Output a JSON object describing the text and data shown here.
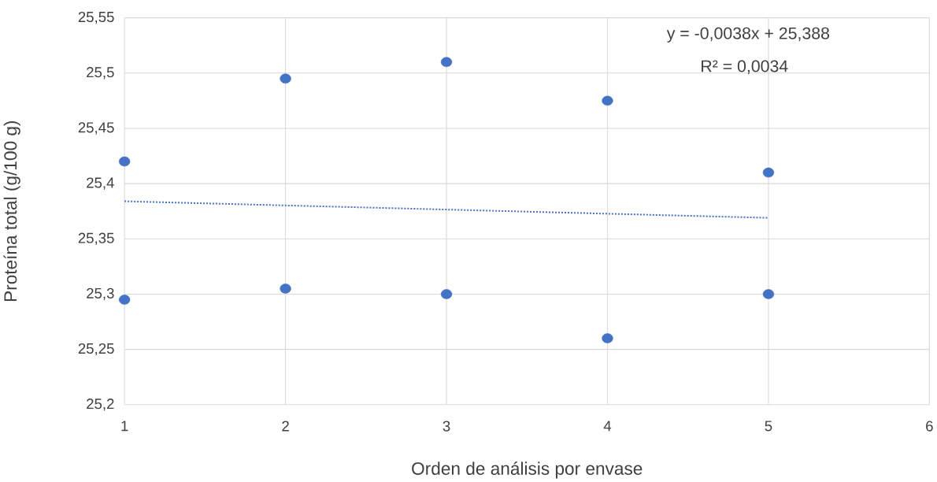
{
  "chart_data": {
    "type": "scatter",
    "xlabel": "Orden de análisis por envase",
    "ylabel": "Proteína total (g/100 g)",
    "series": [
      {
        "type": "scatter",
        "color": "#4472c4",
        "marker": "circle",
        "x": [
          1,
          1,
          2,
          2,
          3,
          3,
          4,
          4,
          5,
          5
        ],
        "values": [
          25.42,
          25.295,
          25.495,
          25.305,
          25.51,
          25.3,
          25.475,
          25.26,
          25.41,
          25.3
        ]
      },
      {
        "type": "line",
        "color": "#4472c4",
        "marker": "none",
        "line_style": "dotted",
        "x": [
          1,
          5
        ],
        "values": [
          25.384,
          25.369
        ]
      }
    ],
    "annotations": [
      "y = -0,0038x + 25,388",
      "R² = 0,0034"
    ],
    "xlim": [
      1,
      6
    ],
    "xticks": [
      1,
      2,
      3,
      4,
      5,
      6
    ],
    "ylim": [
      25.2,
      25.55
    ],
    "yticks": [
      {
        "value": 25.2,
        "label": "25,2"
      },
      {
        "value": 25.25,
        "label": "25,25"
      },
      {
        "value": 25.3,
        "label": "25,3"
      },
      {
        "value": 25.35,
        "label": "25,35"
      },
      {
        "value": 25.4,
        "label": "25,4"
      },
      {
        "value": 25.45,
        "label": "25,45"
      },
      {
        "value": 25.5,
        "label": "25,5"
      },
      {
        "value": 25.55,
        "label": "25,55"
      }
    ],
    "grid": true
  }
}
